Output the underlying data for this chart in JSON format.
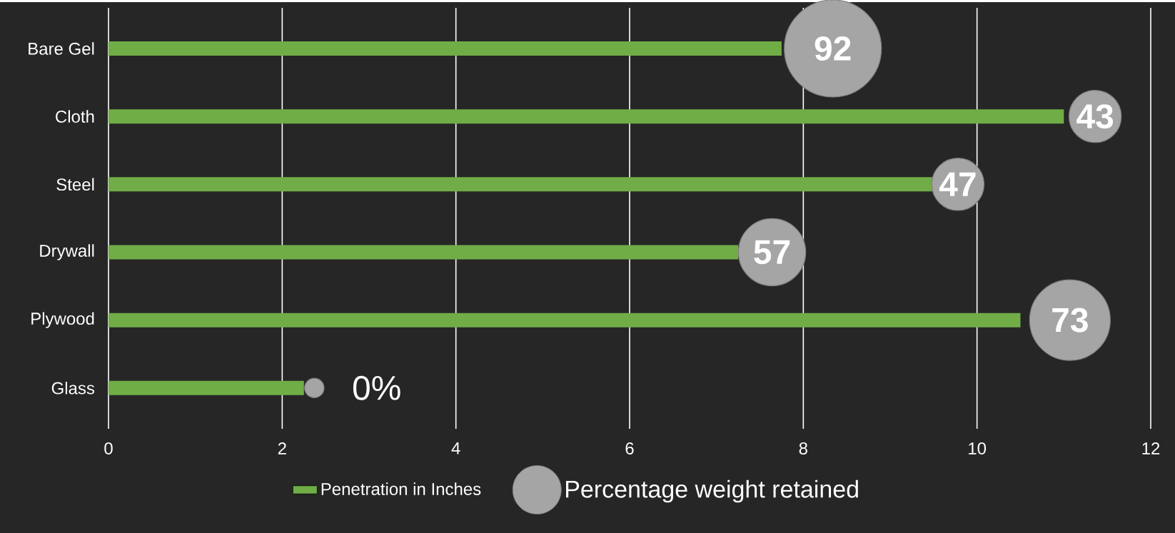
{
  "chart_data": {
    "type": "bar",
    "orientation": "horizontal",
    "categories": [
      "Bare Gel",
      "Cloth",
      "Steel",
      "Drywall",
      "Plywood",
      "Glass"
    ],
    "series": [
      {
        "name": "Penetration in Inches",
        "color": "#70ad47",
        "values": [
          7.75,
          11.0,
          9.5,
          7.25,
          10.5,
          2.25
        ]
      },
      {
        "name": "Percentage weight retained",
        "type": "bubble",
        "color": "#a5a5a5",
        "values": [
          8.34,
          11.36,
          9.78,
          7.64,
          11.07,
          2.37
        ],
        "sizes": [
          1,
          0.29,
          0.29,
          0.48,
          0.69,
          0.04
        ]
      }
    ],
    "annotations": [
      {
        "text": "92",
        "x": 8.34,
        "y": "Bare Gel"
      },
      {
        "text": "43",
        "x": 11.36,
        "y": "Cloth"
      },
      {
        "text": "47",
        "x": 9.78,
        "y": "Steel"
      },
      {
        "text": "57",
        "x": 7.64,
        "y": "Drywall"
      },
      {
        "text": "73",
        "x": 11.07,
        "y": "Plywood"
      },
      {
        "text": "0%",
        "x": 2.37,
        "y": "Glass"
      }
    ],
    "xlim": [
      0,
      12
    ],
    "xticks": [
      0,
      2,
      4,
      6,
      8,
      10,
      12
    ],
    "grid": "x",
    "legend": "bottom"
  }
}
